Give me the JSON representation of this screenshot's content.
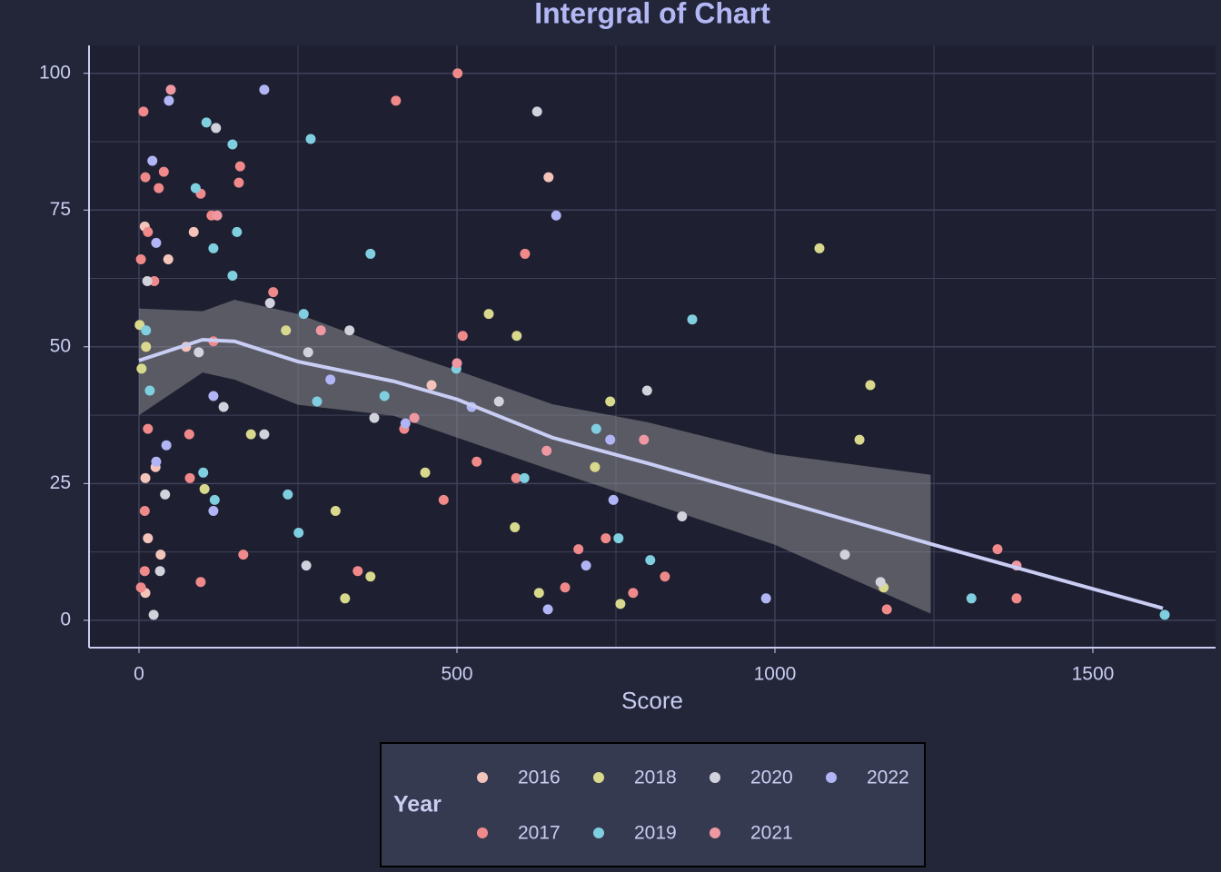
{
  "chart_data": {
    "type": "scatter",
    "title": "Intergral of Chart",
    "x_label": "Score",
    "legend_title": "Year",
    "legend_position": "bottom",
    "xlim": [
      -78.6,
      1692.9
    ],
    "ylim": [
      -5,
      105.1
    ],
    "xticks": [
      0,
      500,
      1000,
      1500
    ],
    "yticks": [
      0,
      25,
      50,
      75,
      100
    ],
    "x_minor_ticks": [
      250,
      750,
      1250
    ],
    "y_minor_ticks": [
      12.5,
      37.5,
      62.5,
      87.5
    ],
    "grid": true,
    "series": [
      {
        "name": "2016",
        "color": "#f4c4bb",
        "x": [
          86,
          9,
          46,
          74,
          460,
          644,
          26,
          10,
          14,
          34,
          10
        ],
        "values": [
          71,
          72,
          66,
          50,
          43,
          81,
          28,
          26,
          15,
          12,
          5
        ]
      },
      {
        "name": "2017",
        "color": "#f08a8a",
        "x": [
          7,
          10,
          39,
          31,
          97,
          159,
          157,
          114,
          14,
          3,
          24,
          117,
          14,
          79,
          211,
          404,
          501,
          509,
          607,
          80,
          9,
          9,
          97,
          3,
          164,
          344,
          417,
          479,
          531,
          593,
          670,
          691,
          734,
          777,
          827,
          1176,
          1350,
          1380
        ],
        "values": [
          93,
          81,
          82,
          79,
          78,
          83,
          80,
          74,
          71,
          66,
          62,
          51,
          35,
          34,
          60,
          95,
          100,
          52,
          67,
          26,
          20,
          9,
          7,
          6,
          12,
          9,
          35,
          22,
          29,
          26,
          6,
          13,
          15,
          5,
          8,
          2,
          13,
          4
        ]
      },
      {
        "name": "2018",
        "color": "#d8d98c",
        "x": [
          1,
          11,
          4,
          176,
          231,
          550,
          594,
          103,
          309,
          324,
          364,
          450,
          591,
          629,
          717,
          741,
          757,
          1070,
          1133,
          1150,
          1171
        ],
        "values": [
          54,
          50,
          46,
          34,
          53,
          56,
          52,
          24,
          20,
          4,
          8,
          27,
          17,
          5,
          28,
          40,
          3,
          68,
          33,
          43,
          6
        ]
      },
      {
        "name": "2019",
        "color": "#7fcfe0",
        "x": [
          89,
          106,
          147,
          117,
          154,
          147,
          11,
          17,
          259,
          270,
          280,
          364,
          386,
          499,
          101,
          119,
          234,
          251,
          606,
          719,
          754,
          804,
          870,
          1309,
          1613
        ],
        "values": [
          79,
          91,
          87,
          68,
          71,
          63,
          53,
          42,
          56,
          88,
          40,
          67,
          41,
          46,
          27,
          22,
          23,
          16,
          26,
          35,
          15,
          11,
          55,
          4,
          1
        ]
      },
      {
        "name": "2020",
        "color": "#d2d2dc",
        "x": [
          121,
          13,
          94,
          133,
          197,
          206,
          266,
          331,
          370,
          566,
          626,
          41,
          33,
          23,
          263,
          799,
          854,
          1110,
          1166
        ],
        "values": [
          90,
          62,
          49,
          39,
          34,
          58,
          49,
          53,
          37,
          40,
          93,
          23,
          9,
          1,
          10,
          42,
          19,
          12,
          7
        ]
      },
      {
        "name": "2021",
        "color": "#ef98a2",
        "x": [
          50,
          123,
          286,
          433,
          500,
          641,
          794,
          1380
        ],
        "values": [
          97,
          74,
          53,
          37,
          47,
          31,
          33,
          10
        ]
      },
      {
        "name": "2022",
        "color": "#b1b5f5",
        "x": [
          47,
          21,
          27,
          117,
          43,
          197,
          301,
          419,
          523,
          656,
          27,
          117,
          643,
          703,
          741,
          746,
          986
        ],
        "values": [
          95,
          84,
          69,
          41,
          32,
          97,
          44,
          36,
          39,
          74,
          29,
          20,
          2,
          10,
          33,
          22,
          4
        ]
      }
    ],
    "smooth": {
      "color": "#c9cdf4",
      "band_color": "#8a8a8f",
      "x": [
        0,
        100,
        150,
        250,
        400,
        500,
        650,
        800,
        1000,
        1250,
        1610
      ],
      "values": [
        47.5,
        51.3,
        51,
        47.3,
        43.7,
        40.4,
        33.4,
        28.7,
        22.1,
        13.8,
        2.2
      ],
      "band_x": [
        0,
        100,
        150,
        250,
        400,
        500,
        650,
        800,
        1000,
        1245
      ],
      "band_upper": [
        57,
        56.5,
        58.6,
        56,
        49.5,
        45.7,
        39.5,
        36.2,
        30.4,
        26.6
      ],
      "band_lower": [
        37.5,
        45.3,
        44,
        39.4,
        37.4,
        33.4,
        27.4,
        21.6,
        13.8,
        1.2
      ]
    }
  }
}
